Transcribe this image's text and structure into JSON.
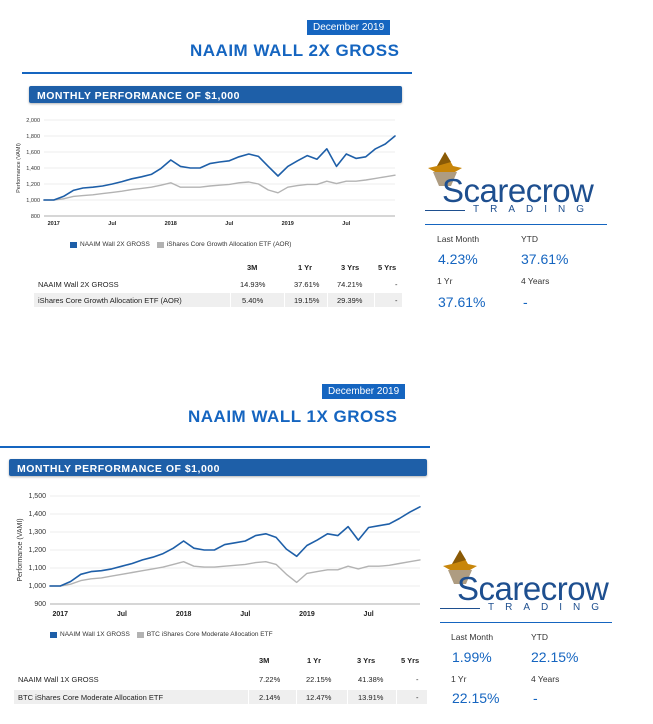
{
  "reports": [
    {
      "date": "December 2019",
      "title": "NAAIM WALL 2X GROSS",
      "section_title": "MONTHLY PERFORMANCE OF $1,000",
      "logo": {
        "name": "Scarecrow",
        "tagline": "TRADING",
        "icon": "scarecrow-hat-icon",
        "color": "#1e4f8f",
        "accent": "#c8860a"
      },
      "stats": {
        "last_month_label": "Last Month",
        "last_month_value": "4.23%",
        "ytd_label": "YTD",
        "ytd_value": "37.61%",
        "one_yr_label": "1 Yr",
        "one_yr_value": "37.61%",
        "four_years_label": "4 Years",
        "four_years_value": "-"
      },
      "table": {
        "headers": [
          "3M",
          "1 Yr",
          "3 Yrs",
          "5 Yrs"
        ],
        "rows": [
          {
            "name": "NAAIM Wall 2X GROSS",
            "values": [
              "14.93%",
              "37.61%",
              "74.21%",
              "-"
            ]
          },
          {
            "name": "iShares Core Growth Allocation ETF (AOR)",
            "values": [
              "5.40%",
              "19.15%",
              "29.39%",
              "-"
            ]
          }
        ]
      },
      "chart_data": {
        "type": "line",
        "ylabel": "Performance (VAMI)",
        "ylim": [
          800,
          2000
        ],
        "y_ticks": [
          "2,000",
          "1,800",
          "1,600",
          "1,400",
          "1,200",
          "1,000",
          "800"
        ],
        "x_ticks": [
          "2017",
          "Jul",
          "2018",
          "Jul",
          "2019",
          "Jul"
        ],
        "x_tick_months": [
          1,
          7,
          13,
          19,
          25,
          31
        ],
        "grid": true,
        "legend_position": "bottom-left",
        "series": [
          {
            "name": "NAAIM Wall 2X GROSS",
            "color": "#1e5fa8",
            "values": [
              1000,
              1000,
              1045,
              1120,
              1150,
              1160,
              1175,
              1200,
              1230,
              1265,
              1290,
              1320,
              1395,
              1500,
              1420,
              1400,
              1400,
              1455,
              1475,
              1490,
              1540,
              1575,
              1545,
              1420,
              1300,
              1420,
              1490,
              1555,
              1510,
              1640,
              1420,
              1575,
              1520,
              1540,
              1640,
              1700,
              1800
            ]
          },
          {
            "name": "iShares Core Growth Allocation ETF (AOR)",
            "color": "#b3b3b3",
            "values": [
              1000,
              1000,
              1015,
              1045,
              1055,
              1065,
              1080,
              1095,
              1110,
              1130,
              1145,
              1160,
              1185,
              1215,
              1160,
              1160,
              1160,
              1175,
              1185,
              1195,
              1215,
              1225,
              1200,
              1125,
              1090,
              1160,
              1180,
              1195,
              1195,
              1235,
              1205,
              1235,
              1235,
              1250,
              1270,
              1290,
              1310
            ]
          }
        ]
      }
    },
    {
      "date": "December 2019",
      "title": "NAAIM WALL 1X GROSS",
      "section_title": "MONTHLY PERFORMANCE OF $1,000",
      "logo": {
        "name": "Scarecrow",
        "tagline": "TRADING",
        "icon": "scarecrow-hat-icon",
        "color": "#1e4f8f",
        "accent": "#c8860a"
      },
      "stats": {
        "last_month_label": "Last Month",
        "last_month_value": "1.99%",
        "ytd_label": "YTD",
        "ytd_value": "22.15%",
        "one_yr_label": "1 Yr",
        "one_yr_value": "22.15%",
        "four_years_label": "4 Years",
        "four_years_value": "-"
      },
      "table": {
        "headers": [
          "3M",
          "1 Yr",
          "3 Yrs",
          "5 Yrs"
        ],
        "rows": [
          {
            "name": "NAAIM Wall 1X GROSS",
            "values": [
              "7.22%",
              "22.15%",
              "41.38%",
              "-"
            ]
          },
          {
            "name": "BTC iShares Core Moderate Allocation ETF",
            "values": [
              "2.14%",
              "12.47%",
              "13.91%",
              "-"
            ]
          }
        ]
      },
      "chart_data": {
        "type": "line",
        "ylabel": "Performance (VAMI)",
        "ylim": [
          900,
          1500
        ],
        "y_ticks": [
          "1,500",
          "1,400",
          "1,300",
          "1,200",
          "1,100",
          "1,000",
          "900"
        ],
        "x_ticks": [
          "2017",
          "Jul",
          "2018",
          "Jul",
          "2019",
          "Jul"
        ],
        "x_tick_months": [
          1,
          7,
          13,
          19,
          25,
          31
        ],
        "grid": true,
        "legend_position": "bottom-left",
        "series": [
          {
            "name": "NAAIM Wall 1X GROSS",
            "color": "#1e5fa8",
            "values": [
              1000,
              1000,
              1025,
              1065,
              1080,
              1085,
              1095,
              1110,
              1125,
              1145,
              1160,
              1180,
              1210,
              1250,
              1210,
              1200,
              1200,
              1230,
              1240,
              1250,
              1280,
              1290,
              1270,
              1205,
              1165,
              1225,
              1255,
              1290,
              1280,
              1330,
              1255,
              1325,
              1335,
              1345,
              1375,
              1410,
              1440
            ]
          },
          {
            "name": "BTC iShares Core Moderate Allocation ETF",
            "color": "#b3b3b3",
            "values": [
              1000,
              1000,
              1010,
              1030,
              1040,
              1045,
              1055,
              1065,
              1075,
              1085,
              1095,
              1105,
              1120,
              1135,
              1110,
              1105,
              1105,
              1110,
              1115,
              1120,
              1130,
              1135,
              1120,
              1065,
              1020,
              1070,
              1080,
              1090,
              1090,
              1110,
              1095,
              1110,
              1110,
              1115,
              1125,
              1135,
              1145
            ]
          }
        ]
      }
    }
  ]
}
